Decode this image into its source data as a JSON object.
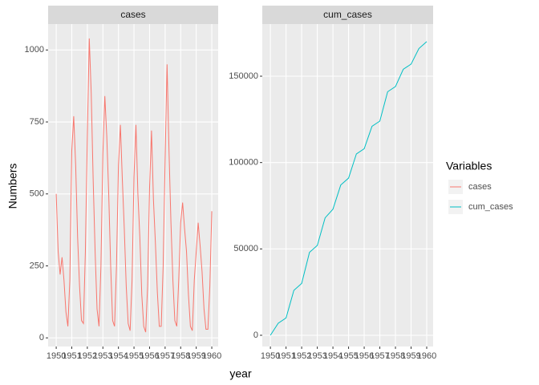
{
  "chart_data": {
    "type": "line",
    "x_label": "year",
    "y_label": "Numbers",
    "legend_title": "Variables",
    "xlim": [
      1949.48,
      1960.41
    ],
    "xticks": [
      1950,
      1951,
      1952,
      1953,
      1954,
      1955,
      1956,
      1957,
      1958,
      1959,
      1960
    ],
    "grid": true,
    "panels": [
      {
        "title": "cases",
        "ylim": [
          -30,
          1090
        ],
        "yticks": [
          0,
          250,
          500,
          750,
          1000
        ],
        "series": [
          {
            "name": "cases",
            "color": "#F8766D",
            "x": [
              1950,
              1950.125,
              1950.25,
              1950.375,
              1950.5,
              1950.625,
              1950.75,
              1950.875,
              1951,
              1951.125,
              1951.25,
              1951.375,
              1951.5,
              1951.625,
              1951.75,
              1951.875,
              1952,
              1952.125,
              1952.25,
              1952.375,
              1952.5,
              1952.625,
              1952.75,
              1952.875,
              1953,
              1953.125,
              1953.25,
              1953.375,
              1953.5,
              1953.625,
              1953.75,
              1953.875,
              1954,
              1954.125,
              1954.25,
              1954.375,
              1954.5,
              1954.625,
              1954.75,
              1954.875,
              1955,
              1955.125,
              1955.25,
              1955.375,
              1955.5,
              1955.625,
              1955.75,
              1955.875,
              1956,
              1956.125,
              1956.25,
              1956.375,
              1956.5,
              1956.625,
              1956.75,
              1956.875,
              1957,
              1957.125,
              1957.25,
              1957.375,
              1957.5,
              1957.625,
              1957.75,
              1957.875,
              1958,
              1958.125,
              1958.25,
              1958.375,
              1958.5,
              1958.625,
              1958.75,
              1958.875,
              1959,
              1959.125,
              1959.25,
              1959.375,
              1959.5,
              1959.625,
              1959.75,
              1959.875,
              1960
            ],
            "values": [
              500,
              300,
              220,
              280,
              200,
              90,
              40,
              200,
              650,
              770,
              600,
              350,
              180,
              60,
              50,
              300,
              700,
              1040,
              850,
              550,
              300,
              100,
              40,
              250,
              640,
              840,
              700,
              500,
              250,
              60,
              40,
              250,
              600,
              740,
              550,
              380,
              180,
              50,
              25,
              200,
              560,
              740,
              500,
              350,
              150,
              40,
              20,
              180,
              520,
              720,
              480,
              330,
              160,
              40,
              40,
              250,
              620,
              950,
              650,
              400,
              200,
              60,
              40,
              200,
              400,
              470,
              380,
              300,
              150,
              40,
              25,
              200,
              300,
              400,
              320,
              230,
              100,
              30,
              30,
              180,
              440
            ]
          }
        ]
      },
      {
        "title": "cum_cases",
        "ylim": [
          -6500,
          180185
        ],
        "yticks": [
          0,
          50000,
          100000,
          150000
        ],
        "series": [
          {
            "name": "cum_cases",
            "color": "#00BFC4",
            "x": [
              1950,
              1950.5,
              1951,
              1951.5,
              1952,
              1952.5,
              1953,
              1953.5,
              1954,
              1954.5,
              1955,
              1955.5,
              1956,
              1956.5,
              1957,
              1957.5,
              1958,
              1958.5,
              1959,
              1959.5,
              1960
            ],
            "values": [
              0,
              7000,
              10000,
              26000,
              30000,
              48000,
              52000,
              68000,
              73000,
              87000,
              91000,
              105000,
              108000,
              121000,
              124000,
              141000,
              144000,
              154000,
              157000,
              166000,
              170000
            ]
          }
        ]
      }
    ]
  }
}
